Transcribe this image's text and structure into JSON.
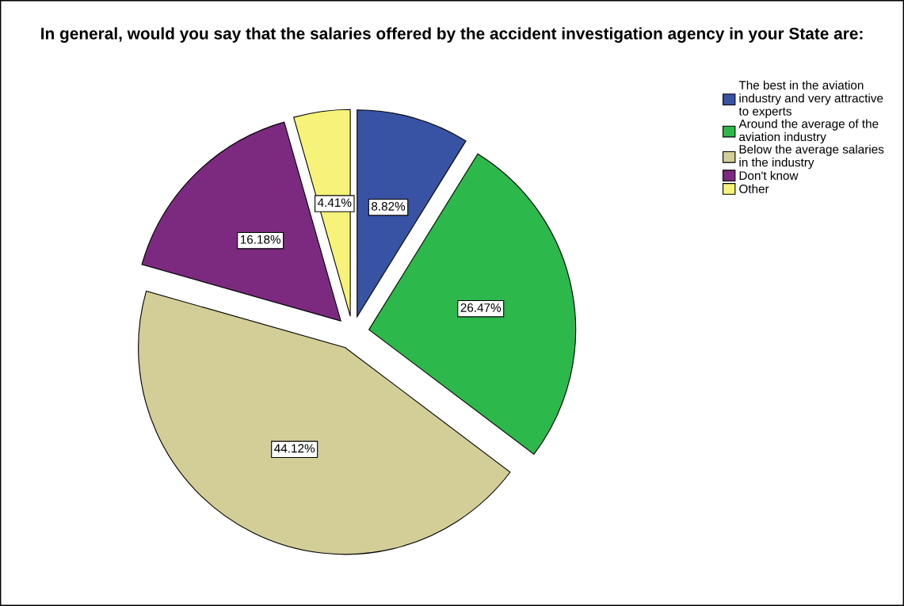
{
  "chart_data": {
    "type": "pie",
    "title": "In general, would you say that the salaries offered by the accident investigation agency in your State are:",
    "categories": [
      "The best in the aviation\nindustry and very attractive\nto experts",
      "Around the average of the\naviation industry",
      "Below the average salaries\nin the industry",
      "Don't know",
      "Other"
    ],
    "values": [
      8.82,
      26.47,
      44.12,
      16.18,
      4.41
    ],
    "colors": [
      "#3953a4",
      "#2db84b",
      "#d3ce97",
      "#7b2a7f",
      "#f7f37a"
    ],
    "value_labels": [
      "8.82%",
      "26.47%",
      "44.12%",
      "16.18%",
      "4.41%"
    ],
    "legend": "top right"
  }
}
